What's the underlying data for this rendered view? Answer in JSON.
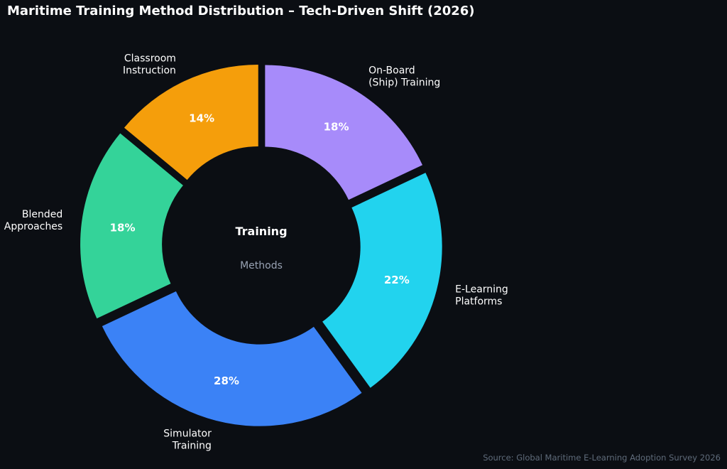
{
  "title": "Maritime Training Method Distribution – Tech-Driven Shift (2026)",
  "source": "Source: Global Maritime E-Learning Adoption Survey 2026",
  "center": {
    "title": "Training",
    "subtitle": "Methods"
  },
  "chart_data": {
    "type": "pie",
    "style": "donut",
    "title": "Maritime Training Method Distribution – Tech-Driven Shift (2026)",
    "center_label": [
      "Training",
      "Methods"
    ],
    "start_angle_deg": 90,
    "direction": "counterclockwise",
    "slices": [
      {
        "label": "Classroom Instruction",
        "label_lines": [
          "Classroom",
          "Instruction"
        ],
        "value": 14,
        "display": "14%",
        "color": "#f59e0b"
      },
      {
        "label": "Blended Approaches",
        "label_lines": [
          "Blended",
          "Approaches"
        ],
        "value": 18,
        "display": "18%",
        "color": "#34d399"
      },
      {
        "label": "Simulator Training",
        "label_lines": [
          "Simulator",
          "Training"
        ],
        "value": 28,
        "display": "28%",
        "color": "#3b82f6"
      },
      {
        "label": "E-Learning Platforms",
        "label_lines": [
          "E-Learning",
          "Platforms"
        ],
        "value": 22,
        "display": "22%",
        "color": "#22d3ee"
      },
      {
        "label": "On-Board (Ship) Training",
        "label_lines": [
          "On-Board",
          "(Ship) Training"
        ],
        "value": 18,
        "display": "18%",
        "color": "#a78bfa"
      }
    ]
  }
}
